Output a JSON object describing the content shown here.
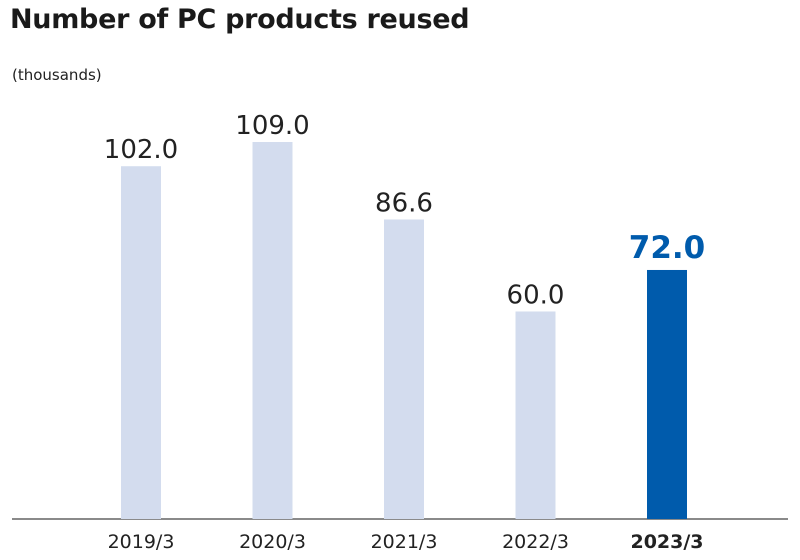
{
  "title": "Number of PC products reused",
  "unit": "(thousands)",
  "colors": {
    "bar": "#d3dcee",
    "highlight": "#005bac",
    "axis": "#444444"
  },
  "chart_data": {
    "type": "bar",
    "title": "Number of PC products reused",
    "ylabel": "(thousands)",
    "categories": [
      "2019/3",
      "2020/3",
      "2021/3",
      "2022/3",
      "2023/3"
    ],
    "values": [
      102.0,
      109.0,
      86.6,
      60.0,
      72.0
    ],
    "value_labels": [
      "102.0",
      "109.0",
      "86.6",
      "60.0",
      "72.0"
    ],
    "highlight_category": "2023/3",
    "ylim": [
      0,
      109
    ],
    "grid": false,
    "legend": "none"
  }
}
